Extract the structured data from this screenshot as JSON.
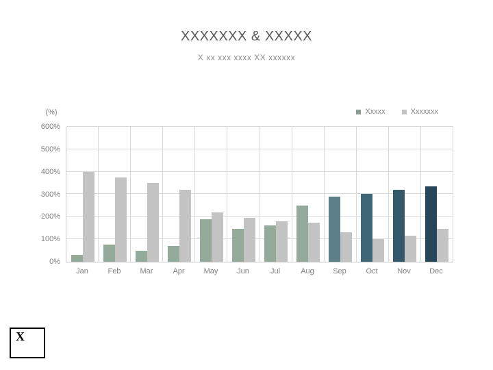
{
  "title": "XXXXXXX & XXXXX",
  "subtitle": "X xx xxx xxxx XX xxxxxx",
  "footer": {
    "letter": "X"
  },
  "colors": {
    "background": "#ffffff",
    "title_text": "#595959",
    "subtitle_text": "#8c8c8c",
    "axis_text": "#808080",
    "gridline": "#d9d9d9",
    "axis_line": "#c6c6c6",
    "footer_border": "#000000"
  },
  "chart_data": {
    "type": "bar",
    "title": "XXXXXXX & XXXXX",
    "subtitle": "X xx xxx xxxx XX xxxxxx",
    "unit_label": "(%)",
    "categories": [
      "Jan",
      "Feb",
      "Mar",
      "Apr",
      "May",
      "Jun",
      "Jul",
      "Aug",
      "Sep",
      "Oct",
      "Nov",
      "Dec"
    ],
    "series": [
      {
        "name": "Xxxxx",
        "values": [
          30,
          75,
          50,
          70,
          190,
          145,
          160,
          250,
          290,
          300,
          320,
          335
        ],
        "bar_colors": [
          "#94ab9b",
          "#94ab9b",
          "#94ab9b",
          "#94ab9b",
          "#94ab9b",
          "#94ab9b",
          "#94ab9b",
          "#94ab9b",
          "#5d7f88",
          "#3f6676",
          "#35596b",
          "#28465a"
        ],
        "legend_color": "#8a9d90"
      },
      {
        "name": "Xxxxxxx",
        "values": [
          400,
          375,
          350,
          320,
          220,
          195,
          180,
          175,
          130,
          100,
          115,
          145
        ],
        "bar_colors": [
          "#c3c3c3",
          "#c3c3c3",
          "#c3c3c3",
          "#c3c3c3",
          "#c3c3c3",
          "#c3c3c3",
          "#c3c3c3",
          "#c3c3c3",
          "#c3c3c3",
          "#c3c3c3",
          "#c3c3c3",
          "#c3c3c3"
        ],
        "legend_color": "#c3c3c3"
      }
    ],
    "xlabel": "",
    "ylabel": "(%)",
    "ylim": [
      0,
      600
    ],
    "y_tick_step": 100,
    "y_tick_labels": [
      "600%",
      "500%",
      "400%",
      "300%",
      "200%",
      "100%",
      "0%"
    ],
    "grid": true,
    "legend_position": "top-right"
  }
}
